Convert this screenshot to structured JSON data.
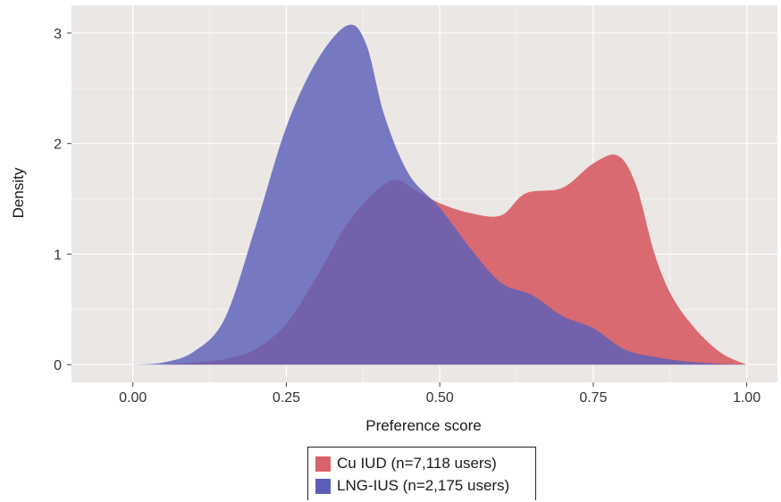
{
  "chart_data": {
    "type": "area",
    "title": "",
    "xlabel": "Preference score",
    "ylabel": "Density",
    "xlim": [
      -0.1,
      1.05
    ],
    "ylim": [
      -0.16,
      3.25
    ],
    "x_ticks": [
      0.0,
      0.25,
      0.5,
      0.75,
      1.0
    ],
    "x_tick_labels": [
      "0.00",
      "0.25",
      "0.50",
      "0.75",
      "1.00"
    ],
    "y_ticks": [
      0,
      1,
      2,
      3
    ],
    "y_tick_labels": [
      "0",
      "1",
      "2",
      "3"
    ],
    "grid": true,
    "legend_position": "bottom",
    "series": [
      {
        "name": "Cu IUD (n=7,118 users)",
        "color": "#d9636b",
        "x": [
          0.0,
          0.05,
          0.1,
          0.15,
          0.2,
          0.25,
          0.3,
          0.35,
          0.4,
          0.43,
          0.46,
          0.5,
          0.55,
          0.6,
          0.64,
          0.7,
          0.75,
          0.79,
          0.82,
          0.85,
          0.88,
          0.92,
          0.96,
          1.0
        ],
        "y": [
          0.0,
          0.0,
          0.02,
          0.05,
          0.14,
          0.37,
          0.8,
          1.28,
          1.59,
          1.67,
          1.58,
          1.46,
          1.37,
          1.35,
          1.55,
          1.6,
          1.82,
          1.89,
          1.62,
          1.0,
          0.6,
          0.3,
          0.1,
          0.0
        ]
      },
      {
        "name": "LNG-IUS (n=2,175 users)",
        "color": "#5b5fb8",
        "x": [
          0.0,
          0.05,
          0.1,
          0.15,
          0.2,
          0.25,
          0.3,
          0.35,
          0.38,
          0.41,
          0.45,
          0.5,
          0.55,
          0.6,
          0.65,
          0.7,
          0.75,
          0.8,
          0.85,
          0.9,
          0.95,
          1.0
        ],
        "y": [
          0.0,
          0.02,
          0.12,
          0.42,
          1.25,
          2.15,
          2.75,
          3.07,
          2.9,
          2.25,
          1.72,
          1.42,
          1.05,
          0.74,
          0.63,
          0.44,
          0.33,
          0.14,
          0.07,
          0.03,
          0.01,
          0.0
        ]
      }
    ]
  }
}
